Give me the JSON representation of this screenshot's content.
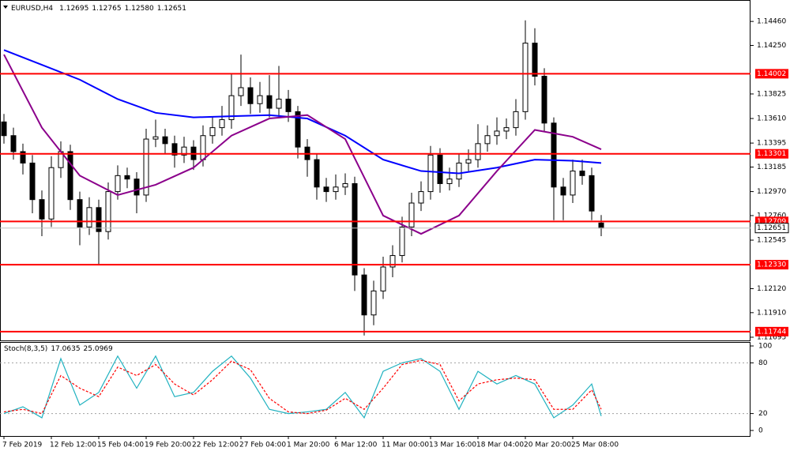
{
  "chart_data": [
    {
      "type": "candlestick",
      "title": "EURUSD,H4",
      "categories": [
        "7 Feb 2019",
        null,
        null,
        null,
        null,
        "12 Feb 12:00",
        null,
        null,
        null,
        null,
        "15 Feb 04:00",
        null,
        null,
        null,
        null,
        "19 Feb 20:00",
        null,
        null,
        null,
        null,
        "22 Feb 12:00",
        null,
        null,
        null,
        null,
        "27 Feb 04:00",
        null,
        null,
        null,
        null,
        "1 Mar 20:00",
        null,
        null,
        null,
        null,
        "6 Mar 12:00",
        null,
        null,
        null,
        null,
        "11 Mar 00:00",
        null,
        null,
        null,
        null,
        "13 Mar 16:00",
        null,
        null,
        null,
        null,
        "18 Mar 04:00",
        null,
        null,
        null,
        null,
        "20 Mar 20:00",
        null,
        null,
        null,
        null,
        "25 Mar 08:00",
        null,
        null,
        null
      ],
      "open": [
        1.1358,
        1.1346,
        1.1332,
        1.1322,
        1.129,
        1.1273,
        1.1318,
        1.1332,
        1.129,
        1.1266,
        1.1283,
        1.1262,
        1.1297,
        1.1311,
        1.1308,
        1.1294,
        1.1343,
        1.1345,
        1.1339,
        1.1329,
        1.1336,
        1.1325,
        1.1346,
        1.1353,
        1.136,
        1.1381,
        1.1388,
        1.1374,
        1.1381,
        1.137,
        1.1378,
        1.1367,
        1.1336,
        1.1325,
        1.1301,
        1.1297,
        1.1301,
        1.1304,
        1.1224,
        1.1189,
        1.121,
        1.1231,
        1.1241,
        1.1266,
        1.1287,
        1.1297,
        1.1329,
        1.1304,
        1.1308,
        1.1322,
        1.1325,
        1.1339,
        1.1346,
        1.135,
        1.1353,
        1.1367,
        1.1427,
        1.1398,
        1.1357,
        1.1301,
        1.1294,
        1.1315,
        1.1311,
        1.12695
      ],
      "high": [
        1.1365,
        1.1353,
        1.1339,
        1.1329,
        1.1298,
        1.1328,
        1.1341,
        1.1338,
        1.1297,
        1.1292,
        1.129,
        1.1305,
        1.132,
        1.1318,
        1.1314,
        1.1352,
        1.136,
        1.1352,
        1.1346,
        1.1345,
        1.1342,
        1.1355,
        1.1362,
        1.1372,
        1.14,
        1.1417,
        1.1397,
        1.1393,
        1.1399,
        1.1407,
        1.1386,
        1.1372,
        1.1343,
        1.133,
        1.1309,
        1.1312,
        1.1313,
        1.131,
        1.123,
        1.1219,
        1.124,
        1.125,
        1.1275,
        1.1296,
        1.1306,
        1.1337,
        1.1335,
        1.1318,
        1.133,
        1.1334,
        1.1356,
        1.1355,
        1.1362,
        1.1361,
        1.1378,
        1.1447,
        1.144,
        1.1405,
        1.1362,
        1.1309,
        1.1325,
        1.1325,
        1.1318,
        1.12765
      ],
      "low": [
        1.1339,
        1.1325,
        1.1312,
        1.1278,
        1.1258,
        1.1266,
        1.1309,
        1.1281,
        1.125,
        1.1259,
        1.1233,
        1.1255,
        1.129,
        1.13,
        1.1278,
        1.1288,
        1.1336,
        1.133,
        1.1318,
        1.1322,
        1.1316,
        1.1319,
        1.1339,
        1.1346,
        1.1352,
        1.1372,
        1.1365,
        1.1366,
        1.1362,
        1.1361,
        1.1358,
        1.1326,
        1.131,
        1.129,
        1.1288,
        1.129,
        1.1294,
        1.121,
        1.1171,
        1.118,
        1.1203,
        1.1222,
        1.1235,
        1.1258,
        1.128,
        1.129,
        1.1296,
        1.1298,
        1.1301,
        1.1315,
        1.1318,
        1.1332,
        1.1338,
        1.1343,
        1.1346,
        1.136,
        1.139,
        1.1349,
        1.1272,
        1.1272,
        1.1287,
        1.1303,
        1.1272,
        1.1258
      ],
      "close": [
        1.1346,
        1.1332,
        1.1322,
        1.129,
        1.1273,
        1.1318,
        1.1332,
        1.129,
        1.1266,
        1.1283,
        1.1262,
        1.1297,
        1.1311,
        1.1308,
        1.1294,
        1.1343,
        1.1345,
        1.1339,
        1.1329,
        1.1336,
        1.1325,
        1.1346,
        1.1353,
        1.136,
        1.1381,
        1.1388,
        1.1374,
        1.1381,
        1.137,
        1.1378,
        1.1367,
        1.1336,
        1.1325,
        1.1301,
        1.1297,
        1.1301,
        1.1304,
        1.1224,
        1.1189,
        1.121,
        1.1231,
        1.1241,
        1.1266,
        1.1287,
        1.1297,
        1.1329,
        1.1304,
        1.1308,
        1.1322,
        1.1325,
        1.1339,
        1.1346,
        1.135,
        1.1353,
        1.1367,
        1.1427,
        1.1398,
        1.1357,
        1.1301,
        1.1294,
        1.1315,
        1.1311,
        1.128,
        1.12651
      ],
      "value_labels": {
        "low": "1.12580"
      },
      "up_color": "#ffffff",
      "down_color": "#000000",
      "wick_color": "#000000",
      "lines": [
        {
          "color": "#0000ff",
          "x": [
            0,
            4,
            8,
            12,
            16,
            20,
            24,
            28,
            32,
            36,
            40,
            44,
            48,
            52,
            56,
            60,
            63
          ],
          "values": [
            1.1421,
            1.1408,
            1.1395,
            1.1378,
            1.1366,
            1.1362,
            1.1363,
            1.1364,
            1.1361,
            1.1346,
            1.1325,
            1.1315,
            1.1313,
            1.1318,
            1.1325,
            1.1324,
            1.1322
          ]
        },
        {
          "color": "#8b008b",
          "x": [
            0,
            4,
            8,
            12,
            16,
            20,
            24,
            28,
            32,
            36,
            40,
            44,
            48,
            52,
            56,
            60,
            63
          ],
          "values": [
            1.1417,
            1.1353,
            1.1311,
            1.1294,
            1.1303,
            1.1318,
            1.1346,
            1.1361,
            1.1364,
            1.1343,
            1.1276,
            1.126,
            1.1276,
            1.1315,
            1.1351,
            1.1345,
            1.1334
          ]
        }
      ],
      "levels": [
        1.14002,
        1.13301,
        1.12709,
        {
          "value": 1.1233,
          "label": "1.12330"
        },
        1.11744
      ],
      "level_color": "#ff0000",
      "ylim": [
        1.1166,
        1.1462
      ],
      "yticks": [
        {
          "value": 1.1446,
          "label": "1.14460"
        },
        {
          "value": 1.1425,
          "label": "1.14250"
        },
        1.13825,
        {
          "value": 1.1361,
          "label": "1.13610"
        },
        1.13395,
        1.13185,
        {
          "value": 1.1297,
          "label": "1.12970"
        },
        {
          "value": 1.1276,
          "label": "1.12760"
        },
        1.12545,
        {
          "value": 1.1212,
          "label": "1.12120"
        },
        {
          "value": 1.1191,
          "label": "1.11910"
        },
        1.11695
      ]
    },
    {
      "type": "line",
      "title": "Stoch(8,3,5)",
      "x": [
        0,
        2,
        4,
        6,
        8,
        10,
        12,
        14,
        16,
        18,
        20,
        22,
        24,
        26,
        28,
        30,
        32,
        34,
        36,
        38,
        40,
        42,
        44,
        46,
        48,
        50,
        52,
        54,
        56,
        58,
        60,
        62,
        63
      ],
      "series": [
        {
          "color": "#20b2c0",
          "dash": false,
          "values": [
            20,
            28,
            15,
            85,
            30,
            45,
            88,
            50,
            88,
            40,
            45,
            70,
            88,
            62,
            25,
            20,
            22,
            25,
            45,
            15,
            70,
            80,
            85,
            70,
            25,
            70,
            55,
            65,
            55,
            15,
            30,
            55,
            17.0635
          ]
        },
        {
          "color": "#ff0000",
          "dash": true,
          "values": [
            22,
            25,
            20,
            65,
            50,
            40,
            75,
            65,
            78,
            55,
            42,
            60,
            82,
            72,
            38,
            22,
            20,
            24,
            38,
            25,
            50,
            78,
            83,
            78,
            35,
            55,
            60,
            62,
            60,
            25,
            25,
            48,
            25.0969
          ]
        }
      ],
      "ylim": [
        0,
        100
      ],
      "yticks": [
        100,
        80,
        20,
        0
      ],
      "grid_ticks": [
        80,
        20
      ]
    }
  ]
}
